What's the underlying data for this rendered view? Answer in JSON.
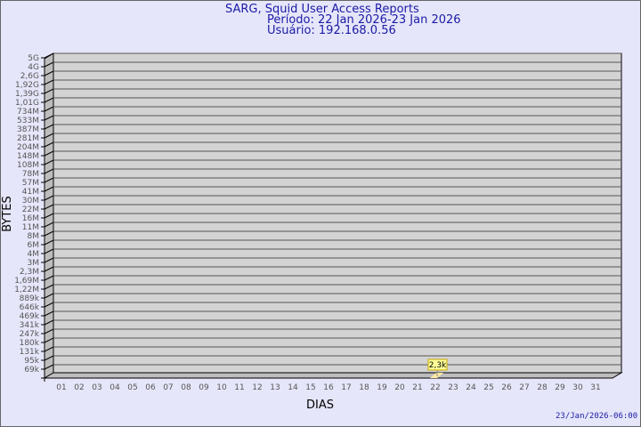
{
  "chart_data": {
    "type": "bar",
    "title": "SARG, Squid User Access Reports",
    "subtitle": [
      "Período: 22 Jan 2026-23 Jan 2026",
      "Usuário: 192.168.0.56"
    ],
    "xlabel": "DIAS",
    "ylabel": "BYTES",
    "y_scale": "log",
    "y_ticks": [
      "5G",
      "4G",
      "2,6G",
      "1,92G",
      "1,39G",
      "1,01G",
      "734M",
      "533M",
      "387M",
      "281M",
      "204M",
      "148M",
      "108M",
      "78M",
      "57M",
      "41M",
      "30M",
      "22M",
      "16M",
      "11M",
      "8M",
      "6M",
      "4M",
      "3M",
      "2,3M",
      "1,69M",
      "1,22M",
      "889k",
      "646k",
      "469k",
      "341k",
      "247k",
      "180k",
      "131k",
      "95k",
      "69k"
    ],
    "categories": [
      "01",
      "02",
      "03",
      "04",
      "05",
      "06",
      "07",
      "08",
      "09",
      "10",
      "11",
      "12",
      "13",
      "14",
      "15",
      "16",
      "17",
      "18",
      "19",
      "20",
      "21",
      "22",
      "23",
      "24",
      "25",
      "26",
      "27",
      "28",
      "29",
      "30",
      "31"
    ],
    "bars": [
      {
        "category": "22",
        "value": 2300,
        "label": "2,3k"
      }
    ],
    "grid": true,
    "colors": {
      "plot_bg": "#d3d3d3",
      "bar": "#ffe9a0",
      "label_bg": "#ffff99",
      "text": "#1a1aa6"
    }
  },
  "footer": {
    "timestamp": "23/Jan/2026-06:00"
  }
}
